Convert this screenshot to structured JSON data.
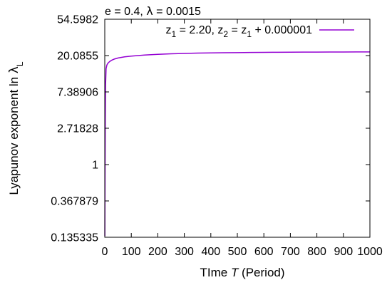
{
  "chart_data": {
    "type": "line",
    "title": "",
    "annotation": {
      "prefix": "e = 0.4, ",
      "symbol": "λ",
      "suffix": " = 0.0015"
    },
    "xlabel": {
      "prefix": "TIme ",
      "italic": "T",
      "suffix": " (Period)"
    },
    "ylabel": {
      "prefix": "Lyapunov exponent ln ",
      "symbol": "λ",
      "subscript": "L"
    },
    "xlim": [
      0,
      1000
    ],
    "ylim": [
      0.135335,
      54.5982
    ],
    "yscale": "log",
    "grid": false,
    "legend_position": "top-right",
    "x_ticks": [
      {
        "value": 0,
        "label": "0"
      },
      {
        "value": 100,
        "label": "100"
      },
      {
        "value": 200,
        "label": "200"
      },
      {
        "value": 300,
        "label": "300"
      },
      {
        "value": 400,
        "label": "400"
      },
      {
        "value": 500,
        "label": "500"
      },
      {
        "value": 600,
        "label": "600"
      },
      {
        "value": 700,
        "label": "700"
      },
      {
        "value": 800,
        "label": "800"
      },
      {
        "value": 900,
        "label": "900"
      },
      {
        "value": 1000,
        "label": "1000"
      }
    ],
    "y_ticks": [
      {
        "value": 0.135335,
        "label": "0.135335"
      },
      {
        "value": 0.367879,
        "label": "0.367879"
      },
      {
        "value": 1,
        "label": "1"
      },
      {
        "value": 2.71828,
        "label": "2.71828"
      },
      {
        "value": 7.38906,
        "label": "7.38906"
      },
      {
        "value": 20.0855,
        "label": "20.0855"
      },
      {
        "value": 54.5982,
        "label": "54.5982"
      }
    ],
    "series": [
      {
        "legend": {
          "segments": [
            {
              "t": "z",
              "sub": "1"
            },
            {
              "t": " = 2.20, z",
              "sub": "2"
            },
            {
              "t": " = z",
              "sub": "1"
            },
            {
              "t": " + 0.000001"
            }
          ]
        },
        "color": "#9400d3",
        "x": [
          0.3,
          1,
          2,
          3,
          5,
          8,
          12,
          18,
          25,
          35,
          50,
          75,
          100,
          150,
          200,
          250,
          300,
          350,
          400,
          450,
          500,
          550,
          600,
          650,
          700,
          750,
          800,
          850,
          900,
          950,
          1000
        ],
        "y": [
          0.14,
          0.7,
          3.5,
          9.0,
          14.0,
          15.5,
          16.3,
          17.0,
          17.6,
          18.2,
          18.8,
          19.4,
          19.8,
          20.4,
          20.8,
          21.1,
          21.3,
          21.5,
          21.6,
          21.7,
          21.8,
          21.9,
          21.95,
          22.0,
          22.05,
          22.1,
          22.12,
          22.15,
          22.18,
          22.2,
          22.22
        ]
      }
    ]
  }
}
